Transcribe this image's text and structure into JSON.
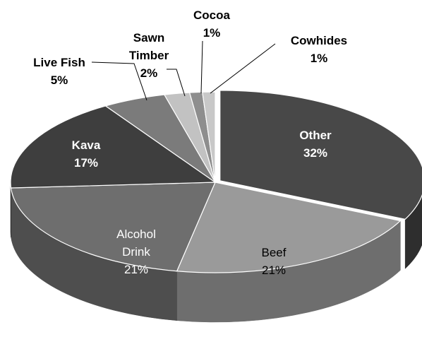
{
  "chart_data": {
    "type": "pie",
    "title": "",
    "style": "3d-exploded",
    "start_angle_deg": -90,
    "direction": "clockwise",
    "slices": [
      {
        "label": "Other",
        "value": 32,
        "value_text": "32%",
        "color": "#484848",
        "side_color": "#2e2e2e",
        "label_color": "#ffffff",
        "bold": true
      },
      {
        "label": "Beef",
        "value": 21,
        "value_text": "21%",
        "color": "#9a9a9a",
        "side_color": "#6e6e6e",
        "label_color": "#000000",
        "bold": false
      },
      {
        "label": "Alcohol Drink",
        "value": 21,
        "value_text": "21%",
        "color": "#6e6e6e",
        "side_color": "#4e4e4e",
        "label_color": "#ffffff",
        "bold": false
      },
      {
        "label": "Kava",
        "value": 17,
        "value_text": "17%",
        "color": "#3e3e3e",
        "side_color": "#282828",
        "label_color": "#ffffff",
        "bold": true
      },
      {
        "label": "Live Fish",
        "value": 5,
        "value_text": "5%",
        "color": "#7b7b7b",
        "side_color": "#575757",
        "label_color": "#000000",
        "bold": true
      },
      {
        "label": "Sawn Timber",
        "value": 2,
        "value_text": "2%",
        "color": "#c2c2c2",
        "side_color": "#909090",
        "label_color": "#000000",
        "bold": true
      },
      {
        "label": "Cocoa",
        "value": 1,
        "value_text": "1%",
        "color": "#8e8e8e",
        "side_color": "#666666",
        "label_color": "#000000",
        "bold": true
      },
      {
        "label": "Cowhides",
        "value": 1,
        "value_text": "1%",
        "color": "#c8c8c8",
        "side_color": "#969696",
        "label_color": "#000000",
        "bold": true
      }
    ]
  }
}
